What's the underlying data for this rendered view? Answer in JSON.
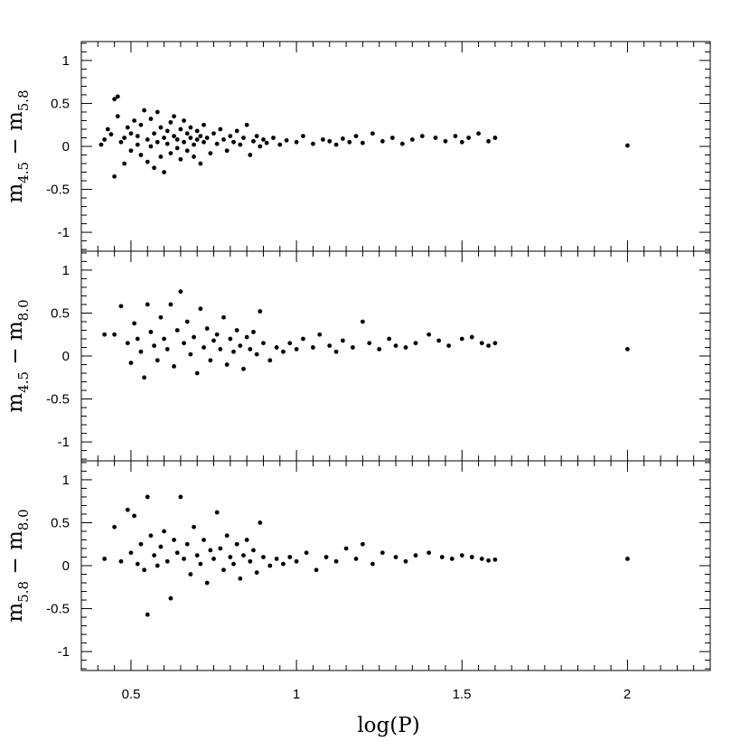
{
  "chart_data": [
    {
      "type": "scatter",
      "ylabel": {
        "main1": "m",
        "sub1": "4.5",
        "dash": " − ",
        "main2": "m",
        "sub2": "5.8"
      },
      "ylim": [
        -1.22,
        1.22
      ],
      "xlim": [
        0.35,
        2.25
      ],
      "y_ticks": [
        "1",
        "0.5",
        "0",
        "-0.5",
        "-1"
      ],
      "points": [
        [
          0.41,
          0.02
        ],
        [
          0.42,
          0.08
        ],
        [
          0.43,
          0.2
        ],
        [
          0.44,
          0.14
        ],
        [
          0.45,
          0.55
        ],
        [
          0.46,
          0.58
        ],
        [
          0.46,
          0.35
        ],
        [
          0.47,
          0.05
        ],
        [
          0.48,
          0.1
        ],
        [
          0.49,
          0.22
        ],
        [
          0.45,
          -0.35
        ],
        [
          0.48,
          -0.2
        ],
        [
          0.5,
          0.15
        ],
        [
          0.5,
          -0.05
        ],
        [
          0.51,
          0.3
        ],
        [
          0.52,
          0.12
        ],
        [
          0.52,
          0.02
        ],
        [
          0.53,
          -0.1
        ],
        [
          0.53,
          0.25
        ],
        [
          0.54,
          0.42
        ],
        [
          0.55,
          0.08
        ],
        [
          0.55,
          -0.18
        ],
        [
          0.56,
          0.32
        ],
        [
          0.56,
          0.0
        ],
        [
          0.57,
          0.15
        ],
        [
          0.57,
          -0.25
        ],
        [
          0.58,
          0.4
        ],
        [
          0.58,
          0.05
        ],
        [
          0.59,
          -0.12
        ],
        [
          0.59,
          0.22
        ],
        [
          0.6,
          0.1
        ],
        [
          0.6,
          -0.3
        ],
        [
          0.61,
          0.18
        ],
        [
          0.61,
          0.03
        ],
        [
          0.62,
          0.28
        ],
        [
          0.62,
          -0.08
        ],
        [
          0.63,
          0.12
        ],
        [
          0.63,
          0.35
        ],
        [
          0.64,
          -0.02
        ],
        [
          0.64,
          0.08
        ],
        [
          0.65,
          0.2
        ],
        [
          0.65,
          -0.15
        ],
        [
          0.66,
          0.05
        ],
        [
          0.66,
          0.3
        ],
        [
          0.67,
          0.15
        ],
        [
          0.67,
          -0.05
        ],
        [
          0.68,
          0.1
        ],
        [
          0.68,
          0.22
        ],
        [
          0.69,
          0.02
        ],
        [
          0.69,
          -0.12
        ],
        [
          0.7,
          0.18
        ],
        [
          0.7,
          0.08
        ],
        [
          0.71,
          0.12
        ],
        [
          0.71,
          -0.2
        ],
        [
          0.72,
          0.05
        ],
        [
          0.72,
          0.25
        ],
        [
          0.73,
          0.1
        ],
        [
          0.74,
          -0.08
        ],
        [
          0.75,
          0.15
        ],
        [
          0.76,
          0.03
        ],
        [
          0.77,
          0.2
        ],
        [
          0.78,
          0.08
        ],
        [
          0.79,
          -0.05
        ],
        [
          0.8,
          0.12
        ],
        [
          0.81,
          0.05
        ],
        [
          0.82,
          0.18
        ],
        [
          0.83,
          0.02
        ],
        [
          0.84,
          0.1
        ],
        [
          0.85,
          0.25
        ],
        [
          0.86,
          -0.1
        ],
        [
          0.87,
          0.06
        ],
        [
          0.88,
          0.12
        ],
        [
          0.89,
          0.0
        ],
        [
          0.9,
          0.08
        ],
        [
          0.91,
          0.04
        ],
        [
          0.93,
          0.1
        ],
        [
          0.95,
          0.02
        ],
        [
          0.97,
          0.07
        ],
        [
          1.0,
          0.05
        ],
        [
          1.02,
          0.12
        ],
        [
          1.05,
          0.03
        ],
        [
          1.08,
          0.08
        ],
        [
          1.1,
          0.06
        ],
        [
          1.12,
          0.02
        ],
        [
          1.14,
          0.09
        ],
        [
          1.16,
          0.05
        ],
        [
          1.18,
          0.12
        ],
        [
          1.2,
          0.04
        ],
        [
          1.23,
          0.15
        ],
        [
          1.26,
          0.06
        ],
        [
          1.29,
          0.1
        ],
        [
          1.32,
          0.03
        ],
        [
          1.35,
          0.08
        ],
        [
          1.38,
          0.12
        ],
        [
          1.42,
          0.1
        ],
        [
          1.45,
          0.06
        ],
        [
          1.48,
          0.12
        ],
        [
          1.5,
          0.05
        ],
        [
          1.52,
          0.1
        ],
        [
          1.55,
          0.15
        ],
        [
          1.58,
          0.06
        ],
        [
          1.6,
          0.1
        ],
        [
          2.0,
          0.01
        ]
      ]
    },
    {
      "type": "scatter",
      "ylabel": {
        "main1": "m",
        "sub1": "4.5",
        "dash": " − ",
        "main2": "m",
        "sub2": "8.0"
      },
      "ylim": [
        -1.22,
        1.22
      ],
      "xlim": [
        0.35,
        2.25
      ],
      "y_ticks": [
        "1",
        "0.5",
        "0",
        "-0.5",
        "-1"
      ],
      "points": [
        [
          0.42,
          0.25
        ],
        [
          0.45,
          0.25
        ],
        [
          0.47,
          0.58
        ],
        [
          0.49,
          0.15
        ],
        [
          0.5,
          -0.08
        ],
        [
          0.51,
          0.38
        ],
        [
          0.52,
          0.2
        ],
        [
          0.53,
          0.05
        ],
        [
          0.54,
          -0.25
        ],
        [
          0.55,
          0.6
        ],
        [
          0.56,
          0.28
        ],
        [
          0.57,
          0.12
        ],
        [
          0.58,
          -0.05
        ],
        [
          0.59,
          0.45
        ],
        [
          0.6,
          0.2
        ],
        [
          0.61,
          0.08
        ],
        [
          0.62,
          0.6
        ],
        [
          0.63,
          -0.12
        ],
        [
          0.64,
          0.3
        ],
        [
          0.65,
          0.75
        ],
        [
          0.66,
          0.15
        ],
        [
          0.67,
          0.4
        ],
        [
          0.68,
          0.02
        ],
        [
          0.69,
          0.22
        ],
        [
          0.7,
          -0.2
        ],
        [
          0.71,
          0.55
        ],
        [
          0.72,
          0.1
        ],
        [
          0.73,
          0.32
        ],
        [
          0.74,
          -0.05
        ],
        [
          0.75,
          0.18
        ],
        [
          0.76,
          0.25
        ],
        [
          0.77,
          0.08
        ],
        [
          0.78,
          0.45
        ],
        [
          0.79,
          -0.1
        ],
        [
          0.8,
          0.2
        ],
        [
          0.81,
          0.05
        ],
        [
          0.82,
          0.3
        ],
        [
          0.83,
          0.12
        ],
        [
          0.84,
          -0.15
        ],
        [
          0.85,
          0.22
        ],
        [
          0.86,
          0.08
        ],
        [
          0.87,
          0.28
        ],
        [
          0.88,
          0.02
        ],
        [
          0.89,
          0.52
        ],
        [
          0.9,
          0.15
        ],
        [
          0.92,
          -0.05
        ],
        [
          0.94,
          0.1
        ],
        [
          0.96,
          0.05
        ],
        [
          0.98,
          0.15
        ],
        [
          1.0,
          0.08
        ],
        [
          1.02,
          0.2
        ],
        [
          1.05,
          0.1
        ],
        [
          1.07,
          0.25
        ],
        [
          1.1,
          0.12
        ],
        [
          1.12,
          0.05
        ],
        [
          1.14,
          0.18
        ],
        [
          1.17,
          0.1
        ],
        [
          1.2,
          0.4
        ],
        [
          1.22,
          0.15
        ],
        [
          1.25,
          0.08
        ],
        [
          1.28,
          0.2
        ],
        [
          1.3,
          0.12
        ],
        [
          1.33,
          0.1
        ],
        [
          1.36,
          0.15
        ],
        [
          1.4,
          0.25
        ],
        [
          1.43,
          0.18
        ],
        [
          1.46,
          0.12
        ],
        [
          1.5,
          0.2
        ],
        [
          1.53,
          0.22
        ],
        [
          1.56,
          0.15
        ],
        [
          1.58,
          0.12
        ],
        [
          1.6,
          0.15
        ],
        [
          2.0,
          0.08
        ]
      ]
    },
    {
      "type": "scatter",
      "ylabel": {
        "main1": "m",
        "sub1": "5.8",
        "dash": " − ",
        "main2": "m",
        "sub2": "8.0"
      },
      "ylim": [
        -1.22,
        1.22
      ],
      "xlim": [
        0.35,
        2.25
      ],
      "y_ticks": [
        "1",
        "0.5",
        "0",
        "-0.5",
        "-1"
      ],
      "points": [
        [
          0.42,
          0.08
        ],
        [
          0.45,
          0.45
        ],
        [
          0.47,
          0.05
        ],
        [
          0.49,
          0.65
        ],
        [
          0.5,
          0.15
        ],
        [
          0.51,
          0.58
        ],
        [
          0.52,
          0.02
        ],
        [
          0.53,
          0.25
        ],
        [
          0.54,
          -0.05
        ],
        [
          0.55,
          0.8
        ],
        [
          0.55,
          -0.57
        ],
        [
          0.56,
          0.35
        ],
        [
          0.57,
          0.12
        ],
        [
          0.58,
          0.0
        ],
        [
          0.59,
          0.22
        ],
        [
          0.6,
          0.4
        ],
        [
          0.61,
          0.05
        ],
        [
          0.62,
          -0.38
        ],
        [
          0.63,
          0.3
        ],
        [
          0.64,
          0.15
        ],
        [
          0.65,
          0.8
        ],
        [
          0.66,
          0.08
        ],
        [
          0.67,
          0.25
        ],
        [
          0.68,
          -0.1
        ],
        [
          0.69,
          0.45
        ],
        [
          0.7,
          0.12
        ],
        [
          0.71,
          0.02
        ],
        [
          0.72,
          0.3
        ],
        [
          0.73,
          -0.2
        ],
        [
          0.74,
          0.18
        ],
        [
          0.75,
          0.08
        ],
        [
          0.76,
          0.62
        ],
        [
          0.77,
          0.2
        ],
        [
          0.78,
          -0.05
        ],
        [
          0.79,
          0.35
        ],
        [
          0.8,
          0.1
        ],
        [
          0.81,
          0.02
        ],
        [
          0.82,
          0.25
        ],
        [
          0.83,
          -0.15
        ],
        [
          0.84,
          0.12
        ],
        [
          0.85,
          0.3
        ],
        [
          0.86,
          0.05
        ],
        [
          0.87,
          0.18
        ],
        [
          0.88,
          -0.08
        ],
        [
          0.89,
          0.5
        ],
        [
          0.9,
          0.1
        ],
        [
          0.92,
          0.0
        ],
        [
          0.94,
          0.08
        ],
        [
          0.96,
          0.02
        ],
        [
          0.98,
          0.1
        ],
        [
          1.0,
          0.05
        ],
        [
          1.03,
          0.15
        ],
        [
          1.06,
          -0.05
        ],
        [
          1.09,
          0.1
        ],
        [
          1.12,
          0.05
        ],
        [
          1.15,
          0.2
        ],
        [
          1.18,
          0.08
        ],
        [
          1.2,
          0.25
        ],
        [
          1.23,
          0.02
        ],
        [
          1.26,
          0.15
        ],
        [
          1.3,
          0.1
        ],
        [
          1.33,
          0.05
        ],
        [
          1.36,
          0.12
        ],
        [
          1.4,
          0.15
        ],
        [
          1.44,
          0.1
        ],
        [
          1.47,
          0.08
        ],
        [
          1.5,
          0.12
        ],
        [
          1.53,
          0.1
        ],
        [
          1.56,
          0.08
        ],
        [
          1.58,
          0.06
        ],
        [
          1.6,
          0.07
        ],
        [
          2.0,
          0.08
        ]
      ]
    }
  ],
  "x_axis": {
    "title": "log(P)",
    "tick_labels": [
      "0.5",
      "1",
      "1.5",
      "2"
    ],
    "tick_values": [
      0.5,
      1,
      1.5,
      2
    ]
  }
}
